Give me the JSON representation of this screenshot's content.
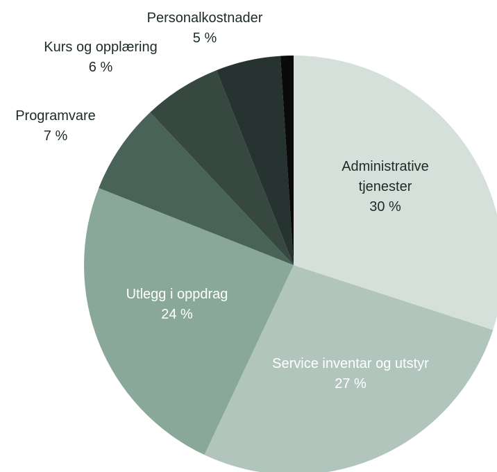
{
  "chart_data": {
    "type": "pie",
    "categories": [
      "Administrative tjenester",
      "Service inventar og utstyr",
      "Utlegg i oppdrag",
      "Programvare",
      "Kurs og opplæring",
      "Personalkostnader",
      null
    ],
    "values": [
      30,
      27,
      24,
      7,
      6,
      5,
      1
    ],
    "value_labels": [
      "30 %",
      "27 %",
      "24 %",
      "7 %",
      "6 %",
      "5 %",
      null
    ],
    "colors": [
      "#d5e0db",
      "#b1c5bd",
      "#8aa89a",
      "#4a6358",
      "#36483f",
      "#263330",
      "#0a0a0a"
    ]
  }
}
